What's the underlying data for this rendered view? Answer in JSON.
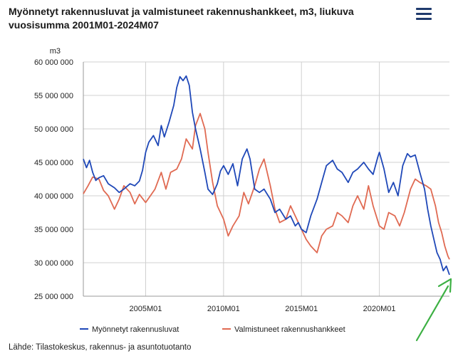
{
  "header": {
    "title": "Myönnetyt rakennusluvat ja valmistuneet rakennushankkeet, m3, liukuva vuosisumma 2001M01-2024M07",
    "menu_icon": "hamburger-menu-icon"
  },
  "footer": {
    "source": "Lähde: Tilastokeskus, rakennus- ja asuntotuotanto"
  },
  "colors": {
    "permits": "#1f48b8",
    "completed": "#e06a52",
    "arrow": "#3cb043",
    "grid": "#d0d0d0",
    "menu": "#1f3a6d"
  },
  "chart_data": {
    "type": "line",
    "title": "Myönnetyt rakennusluvat ja valmistuneet rakennushankkeet, m3, liukuva vuosisumma 2001M01-2024M07",
    "ylabel": "m3",
    "xlabel": "",
    "ylim": [
      25000000,
      60000000
    ],
    "yticks": [
      25000000,
      30000000,
      35000000,
      40000000,
      45000000,
      50000000,
      55000000,
      60000000
    ],
    "ytick_labels": [
      "25 000 000",
      "30 000 000",
      "35 000 000",
      "40 000 000",
      "45 000 000",
      "50 000 000",
      "55 000 000",
      "60 000 000"
    ],
    "xlim": [
      2001.0,
      2024.5
    ],
    "xticks": [
      2005.0,
      2010.0,
      2015.0,
      2020.0
    ],
    "xtick_labels": [
      "2005M01",
      "2010M01",
      "2015M01",
      "2020M01"
    ],
    "grid": true,
    "legend_position": "bottom",
    "annotation": "green arrow pointing to the latest permits value (2024M07)",
    "series": [
      {
        "name": "Myönnetyt rakennusluvat",
        "color": "#1f48b8",
        "x": [
          2001.0,
          2001.2,
          2001.4,
          2001.6,
          2001.8,
          2002.0,
          2002.3,
          2002.6,
          2003.0,
          2003.3,
          2003.6,
          2004.0,
          2004.3,
          2004.6,
          2004.8,
          2005.0,
          2005.2,
          2005.5,
          2005.8,
          2006.0,
          2006.2,
          2006.5,
          2006.8,
          2007.0,
          2007.2,
          2007.4,
          2007.6,
          2007.8,
          2008.0,
          2008.2,
          2008.5,
          2008.8,
          2009.0,
          2009.3,
          2009.6,
          2009.8,
          2010.0,
          2010.3,
          2010.6,
          2010.9,
          2011.2,
          2011.5,
          2011.7,
          2012.0,
          2012.3,
          2012.6,
          2013.0,
          2013.3,
          2013.6,
          2014.0,
          2014.3,
          2014.6,
          2014.8,
          2015.0,
          2015.3,
          2015.6,
          2016.0,
          2016.3,
          2016.6,
          2017.0,
          2017.3,
          2017.6,
          2018.0,
          2018.3,
          2018.6,
          2019.0,
          2019.3,
          2019.6,
          2019.9,
          2020.0,
          2020.3,
          2020.6,
          2020.9,
          2021.2,
          2021.5,
          2021.8,
          2022.0,
          2022.3,
          2022.6,
          2022.9,
          2023.1,
          2023.3,
          2023.5,
          2023.7,
          2023.9,
          2024.1,
          2024.3,
          2024.5
        ],
        "values": [
          45500000,
          44200000,
          45300000,
          43500000,
          42300000,
          42700000,
          43000000,
          41800000,
          41200000,
          40500000,
          41000000,
          41800000,
          41500000,
          42200000,
          43800000,
          46500000,
          48000000,
          49000000,
          47500000,
          50500000,
          48800000,
          51000000,
          53500000,
          56200000,
          57800000,
          57200000,
          57900000,
          56500000,
          52500000,
          50000000,
          47000000,
          43500000,
          41000000,
          40200000,
          41800000,
          43700000,
          44500000,
          43200000,
          44800000,
          41500000,
          45500000,
          47000000,
          45500000,
          41000000,
          40500000,
          41000000,
          39500000,
          37500000,
          38000000,
          36500000,
          37000000,
          35500000,
          36000000,
          35000000,
          34500000,
          37000000,
          39500000,
          42000000,
          44500000,
          45300000,
          44000000,
          43500000,
          42000000,
          43500000,
          44000000,
          45000000,
          44000000,
          43200000,
          45800000,
          46500000,
          44000000,
          40500000,
          42000000,
          40000000,
          44500000,
          46300000,
          45800000,
          46100000,
          43500000,
          41000000,
          38000000,
          35500000,
          33500000,
          31500000,
          30500000,
          28800000,
          29500000,
          28200000
        ]
      },
      {
        "name": "Valmistuneet rakennushankkeet",
        "color": "#e06a52",
        "x": [
          2001.0,
          2001.3,
          2001.6,
          2002.0,
          2002.3,
          2002.6,
          2003.0,
          2003.3,
          2003.6,
          2004.0,
          2004.3,
          2004.6,
          2005.0,
          2005.3,
          2005.6,
          2006.0,
          2006.3,
          2006.6,
          2007.0,
          2007.3,
          2007.6,
          2008.0,
          2008.2,
          2008.5,
          2008.8,
          2009.0,
          2009.3,
          2009.6,
          2010.0,
          2010.3,
          2010.6,
          2011.0,
          2011.3,
          2011.6,
          2012.0,
          2012.3,
          2012.6,
          2013.0,
          2013.3,
          2013.6,
          2014.0,
          2014.3,
          2014.6,
          2015.0,
          2015.3,
          2015.6,
          2016.0,
          2016.3,
          2016.6,
          2017.0,
          2017.3,
          2017.6,
          2018.0,
          2018.3,
          2018.6,
          2019.0,
          2019.3,
          2019.6,
          2020.0,
          2020.3,
          2020.6,
          2021.0,
          2021.3,
          2021.6,
          2022.0,
          2022.3,
          2022.6,
          2023.0,
          2023.3,
          2023.6,
          2023.8,
          2024.0,
          2024.2,
          2024.4,
          2024.5
        ],
        "values": [
          40300000,
          41500000,
          42800000,
          42500000,
          40800000,
          40000000,
          38000000,
          39500000,
          41500000,
          40500000,
          38800000,
          40200000,
          39000000,
          40000000,
          41000000,
          43500000,
          41000000,
          43500000,
          44000000,
          45500000,
          48500000,
          47000000,
          50500000,
          52300000,
          50000000,
          46500000,
          42000000,
          38500000,
          36500000,
          34000000,
          35500000,
          37000000,
          40500000,
          38800000,
          41500000,
          44000000,
          45500000,
          41500000,
          38000000,
          36000000,
          36500000,
          38500000,
          37000000,
          35000000,
          33500000,
          32500000,
          31500000,
          34000000,
          35000000,
          35500000,
          37500000,
          37000000,
          36000000,
          38500000,
          40000000,
          38000000,
          41500000,
          38500000,
          35500000,
          35000000,
          37500000,
          37000000,
          35500000,
          37500000,
          41000000,
          42500000,
          42000000,
          41500000,
          41000000,
          38500000,
          36000000,
          34500000,
          32500000,
          31000000,
          30500000
        ]
      }
    ]
  }
}
